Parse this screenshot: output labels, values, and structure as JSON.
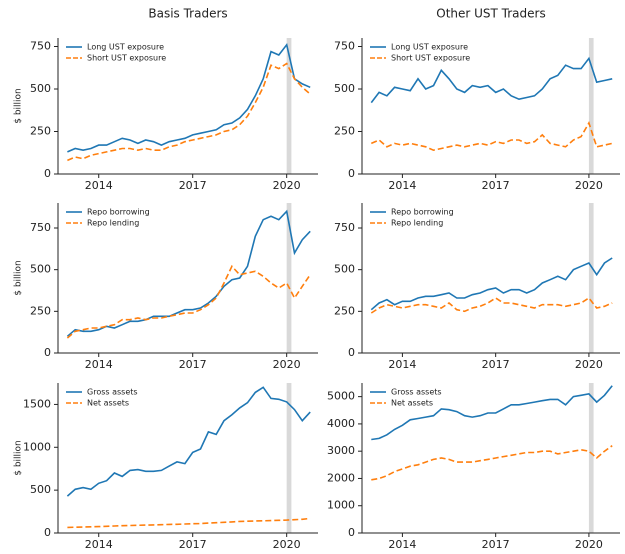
{
  "chart_data": [
    {
      "type": "line",
      "title": "Basis Traders",
      "ylabel": "$ billion",
      "legend": "upper left",
      "x": [
        2013,
        2013.25,
        2013.5,
        2013.75,
        2014,
        2014.25,
        2014.5,
        2014.75,
        2015,
        2015.25,
        2015.5,
        2015.75,
        2016,
        2016.25,
        2016.5,
        2016.75,
        2017,
        2017.25,
        2017.5,
        2017.75,
        2018,
        2018.25,
        2018.5,
        2018.75,
        2019,
        2019.25,
        2019.5,
        2019.75,
        2020,
        2020.25,
        2020.5,
        2020.75
      ],
      "xlim": [
        2012.7,
        2021.0
      ],
      "xticks": [
        2014,
        2017,
        2020
      ],
      "ylim": [
        0,
        800
      ],
      "yticks": [
        0,
        250,
        500,
        750
      ],
      "span": {
        "x": [
          2020.0,
          2020.15
        ],
        "color": "#d9d9d9"
      },
      "series": [
        {
          "name": "Long UST exposure",
          "color": "#1f77b4",
          "linestyle": "solid",
          "values": [
            130,
            150,
            140,
            150,
            170,
            170,
            190,
            210,
            200,
            180,
            200,
            190,
            170,
            190,
            200,
            210,
            230,
            240,
            250,
            260,
            290,
            300,
            330,
            380,
            460,
            560,
            720,
            700,
            760,
            560,
            530,
            510
          ]
        },
        {
          "name": "Short UST exposure",
          "color": "#ff7f0e",
          "linestyle": "dashed",
          "values": [
            80,
            100,
            90,
            110,
            120,
            130,
            140,
            150,
            150,
            140,
            150,
            140,
            140,
            160,
            170,
            190,
            200,
            210,
            220,
            230,
            250,
            260,
            290,
            340,
            420,
            510,
            640,
            620,
            650,
            560,
            510,
            470
          ]
        }
      ]
    },
    {
      "type": "line",
      "title": "Other UST Traders",
      "legend": "upper left",
      "x": [
        2013,
        2013.25,
        2013.5,
        2013.75,
        2014,
        2014.25,
        2014.5,
        2014.75,
        2015,
        2015.25,
        2015.5,
        2015.75,
        2016,
        2016.25,
        2016.5,
        2016.75,
        2017,
        2017.25,
        2017.5,
        2017.75,
        2018,
        2018.25,
        2018.5,
        2018.75,
        2019,
        2019.25,
        2019.5,
        2019.75,
        2020,
        2020.25,
        2020.5,
        2020.75
      ],
      "xlim": [
        2012.7,
        2021.0
      ],
      "xticks": [
        2014,
        2017,
        2020
      ],
      "ylim": [
        0,
        800
      ],
      "yticks": [
        0,
        250,
        500,
        750
      ],
      "span": {
        "x": [
          2020.0,
          2020.15
        ],
        "color": "#d9d9d9"
      },
      "series": [
        {
          "name": "Long UST exposure",
          "color": "#1f77b4",
          "linestyle": "solid",
          "values": [
            420,
            480,
            460,
            510,
            500,
            490,
            560,
            500,
            520,
            610,
            560,
            500,
            480,
            520,
            510,
            520,
            480,
            500,
            460,
            440,
            450,
            460,
            500,
            560,
            580,
            640,
            620,
            620,
            680,
            540,
            550,
            560
          ]
        },
        {
          "name": "Short UST exposure",
          "color": "#ff7f0e",
          "linestyle": "dashed",
          "values": [
            180,
            200,
            160,
            180,
            170,
            180,
            170,
            160,
            140,
            150,
            160,
            170,
            160,
            170,
            180,
            170,
            190,
            180,
            200,
            200,
            180,
            190,
            230,
            180,
            170,
            160,
            200,
            220,
            300,
            160,
            170,
            180
          ]
        }
      ]
    },
    {
      "type": "line",
      "ylabel": "$ billion",
      "legend": "upper left",
      "x": [
        2013,
        2013.25,
        2013.5,
        2013.75,
        2014,
        2014.25,
        2014.5,
        2014.75,
        2015,
        2015.25,
        2015.5,
        2015.75,
        2016,
        2016.25,
        2016.5,
        2016.75,
        2017,
        2017.25,
        2017.5,
        2017.75,
        2018,
        2018.25,
        2018.5,
        2018.75,
        2019,
        2019.25,
        2019.5,
        2019.75,
        2020,
        2020.25,
        2020.5,
        2020.75
      ],
      "xlim": [
        2012.7,
        2021.0
      ],
      "xticks": [
        2014,
        2017,
        2020
      ],
      "ylim": [
        0,
        900
      ],
      "yticks": [
        0,
        250,
        500,
        750
      ],
      "span": {
        "x": [
          2020.0,
          2020.15
        ],
        "color": "#d9d9d9"
      },
      "series": [
        {
          "name": "Repo borrowing",
          "color": "#1f77b4",
          "linestyle": "solid",
          "values": [
            100,
            140,
            130,
            130,
            140,
            160,
            150,
            170,
            190,
            190,
            200,
            220,
            220,
            220,
            240,
            260,
            260,
            270,
            300,
            340,
            400,
            440,
            450,
            520,
            700,
            800,
            820,
            800,
            850,
            600,
            680,
            730
          ]
        },
        {
          "name": "Repo lending",
          "color": "#ff7f0e",
          "linestyle": "dashed",
          "values": [
            90,
            130,
            140,
            150,
            150,
            160,
            170,
            200,
            200,
            210,
            200,
            210,
            210,
            220,
            230,
            240,
            240,
            260,
            290,
            330,
            420,
            520,
            470,
            480,
            490,
            460,
            420,
            390,
            420,
            330,
            400,
            470
          ]
        }
      ]
    },
    {
      "type": "line",
      "legend": "upper left",
      "x": [
        2013,
        2013.25,
        2013.5,
        2013.75,
        2014,
        2014.25,
        2014.5,
        2014.75,
        2015,
        2015.25,
        2015.5,
        2015.75,
        2016,
        2016.25,
        2016.5,
        2016.75,
        2017,
        2017.25,
        2017.5,
        2017.75,
        2018,
        2018.25,
        2018.5,
        2018.75,
        2019,
        2019.25,
        2019.5,
        2019.75,
        2020,
        2020.25,
        2020.5,
        2020.75
      ],
      "xlim": [
        2012.7,
        2021.0
      ],
      "xticks": [
        2014,
        2017,
        2020
      ],
      "ylim": [
        0,
        900
      ],
      "yticks": [
        0,
        250,
        500,
        750
      ],
      "span": {
        "x": [
          2020.0,
          2020.15
        ],
        "color": "#d9d9d9"
      },
      "series": [
        {
          "name": "Repo borrowing",
          "color": "#1f77b4",
          "linestyle": "solid",
          "values": [
            260,
            300,
            320,
            290,
            310,
            310,
            330,
            340,
            340,
            350,
            360,
            330,
            330,
            350,
            360,
            380,
            390,
            360,
            380,
            380,
            360,
            380,
            420,
            440,
            460,
            440,
            500,
            520,
            540,
            470,
            540,
            570
          ]
        },
        {
          "name": "Repo lending",
          "color": "#ff7f0e",
          "linestyle": "dashed",
          "values": [
            240,
            270,
            290,
            280,
            270,
            280,
            290,
            290,
            280,
            270,
            300,
            260,
            250,
            270,
            280,
            300,
            330,
            300,
            300,
            290,
            280,
            270,
            290,
            290,
            290,
            280,
            290,
            300,
            330,
            270,
            280,
            300
          ]
        }
      ]
    },
    {
      "type": "line",
      "ylabel": "$ billion",
      "legend": "upper left",
      "x": [
        2013,
        2013.25,
        2013.5,
        2013.75,
        2014,
        2014.25,
        2014.5,
        2014.75,
        2015,
        2015.25,
        2015.5,
        2015.75,
        2016,
        2016.25,
        2016.5,
        2016.75,
        2017,
        2017.25,
        2017.5,
        2017.75,
        2018,
        2018.25,
        2018.5,
        2018.75,
        2019,
        2019.25,
        2019.5,
        2019.75,
        2020,
        2020.25,
        2020.5,
        2020.75
      ],
      "xlim": [
        2012.7,
        2021.0
      ],
      "xticks": [
        2014,
        2017,
        2020
      ],
      "ylim": [
        0,
        1750
      ],
      "yticks": [
        0,
        500,
        1000,
        1500
      ],
      "span": {
        "x": [
          2020.0,
          2020.15
        ],
        "color": "#d9d9d9"
      },
      "series": [
        {
          "name": "Gross assets",
          "color": "#1f77b4",
          "linestyle": "solid",
          "values": [
            430,
            510,
            530,
            510,
            580,
            610,
            700,
            660,
            730,
            740,
            720,
            720,
            730,
            780,
            830,
            810,
            940,
            980,
            1180,
            1150,
            1310,
            1380,
            1460,
            1520,
            1640,
            1700,
            1570,
            1560,
            1530,
            1440,
            1310,
            1410
          ]
        },
        {
          "name": "Net assets",
          "color": "#ff7f0e",
          "linestyle": "dashed",
          "values": [
            65,
            68,
            70,
            72,
            75,
            78,
            82,
            85,
            88,
            90,
            92,
            95,
            97,
            100,
            102,
            105,
            108,
            110,
            115,
            120,
            125,
            130,
            135,
            138,
            140,
            142,
            145,
            148,
            150,
            155,
            160,
            170
          ]
        }
      ]
    },
    {
      "type": "line",
      "legend": "upper left",
      "x": [
        2013,
        2013.25,
        2013.5,
        2013.75,
        2014,
        2014.25,
        2014.5,
        2014.75,
        2015,
        2015.25,
        2015.5,
        2015.75,
        2016,
        2016.25,
        2016.5,
        2016.75,
        2017,
        2017.25,
        2017.5,
        2017.75,
        2018,
        2018.25,
        2018.5,
        2018.75,
        2019,
        2019.25,
        2019.5,
        2019.75,
        2020,
        2020.25,
        2020.5,
        2020.75
      ],
      "xlim": [
        2012.7,
        2021.0
      ],
      "xticks": [
        2014,
        2017,
        2020
      ],
      "ylim": [
        0,
        5500
      ],
      "yticks": [
        0,
        1000,
        2000,
        3000,
        4000,
        5000
      ],
      "span": {
        "x": [
          2020.0,
          2020.15
        ],
        "color": "#d9d9d9"
      },
      "series": [
        {
          "name": "Gross assets",
          "color": "#1f77b4",
          "linestyle": "solid",
          "values": [
            3430,
            3470,
            3600,
            3800,
            3950,
            4150,
            4200,
            4250,
            4300,
            4550,
            4520,
            4450,
            4300,
            4250,
            4300,
            4400,
            4400,
            4550,
            4700,
            4700,
            4750,
            4800,
            4850,
            4900,
            4900,
            4700,
            5000,
            5050,
            5100,
            4800,
            5050,
            5400
          ]
        },
        {
          "name": "Net assets",
          "color": "#ff7f0e",
          "linestyle": "dashed",
          "values": [
            1950,
            2000,
            2100,
            2250,
            2350,
            2450,
            2500,
            2600,
            2700,
            2750,
            2700,
            2600,
            2600,
            2600,
            2650,
            2700,
            2750,
            2800,
            2850,
            2900,
            2950,
            2950,
            3000,
            3000,
            2900,
            2950,
            3000,
            3050,
            3000,
            2750,
            3000,
            3200
          ]
        }
      ]
    }
  ]
}
